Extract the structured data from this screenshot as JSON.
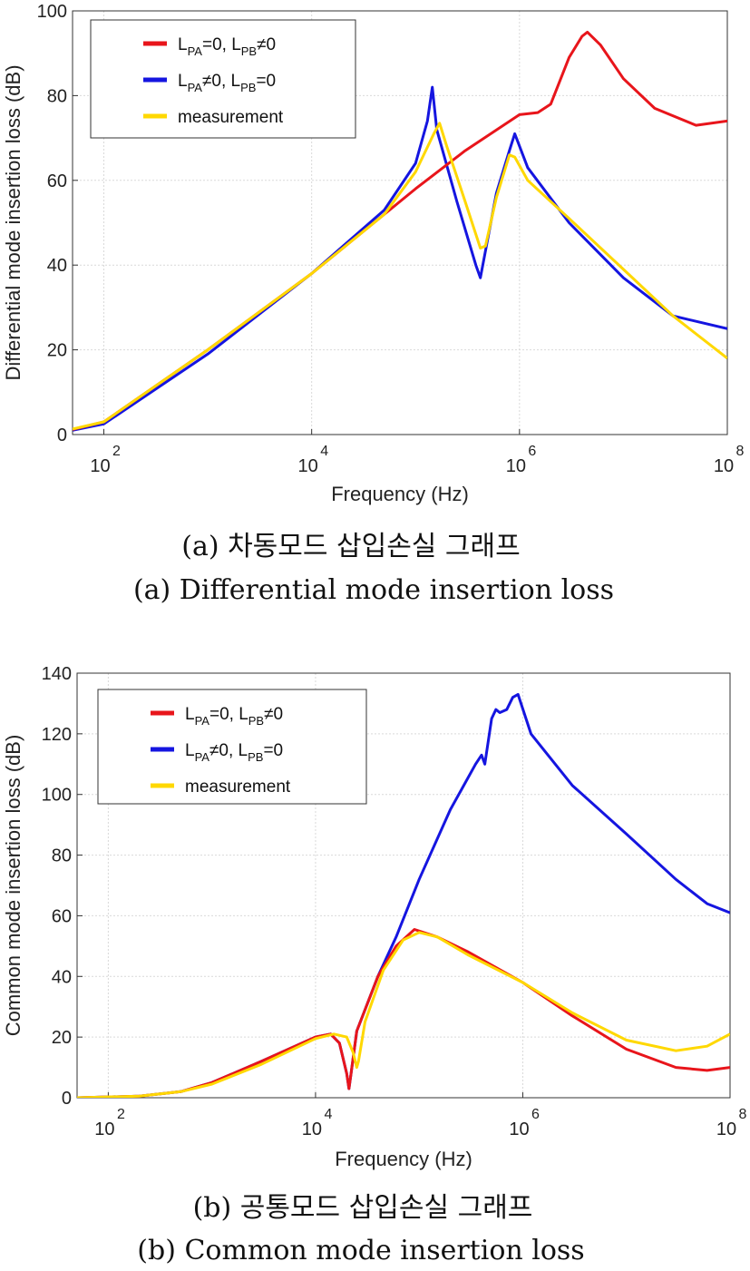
{
  "chart_data": [
    {
      "type": "line",
      "ylabel": "Differential mode insertion loss (dB)",
      "xlabel": "Frequency (Hz)",
      "xscale": "log",
      "xlim": [
        50,
        100000000
      ],
      "ylim": [
        0,
        100
      ],
      "xticks": [
        "2",
        "4",
        "6",
        "8"
      ],
      "yticks": [
        "0",
        "20",
        "40",
        "60",
        "80",
        "100"
      ],
      "grid": true,
      "legend_position": "top-left",
      "series": [
        {
          "name": "L_PA=0, L_PB≠0",
          "label_parts": {
            "a": "L",
            "a_sub": "PA",
            "b": "=0, L",
            "b_sub": "PB",
            "c": "≠0"
          },
          "color": "#e8151b",
          "x": [
            50,
            100,
            1000,
            10000,
            100000,
            300000,
            1000000,
            1500000,
            2000000,
            3000000,
            4000000,
            4500000,
            6000000,
            10000000,
            20000000,
            50000000,
            100000000
          ],
          "y": [
            1.2,
            3,
            20,
            38,
            58,
            67,
            75.5,
            76,
            78,
            89,
            94,
            95,
            92,
            84,
            77,
            73,
            74
          ]
        },
        {
          "name": "L_PA≠0, L_PB=0",
          "label_parts": {
            "a": "L",
            "a_sub": "PA",
            "b": "≠0, L",
            "b_sub": "PB",
            "c": "=0"
          },
          "color": "#1515e0",
          "x": [
            50,
            100,
            1000,
            10000,
            50000,
            100000,
            130000,
            145000,
            160000,
            250000,
            380000,
            420000,
            600000,
            800000,
            900000,
            1200000,
            3000000,
            10000000,
            30000000,
            100000000
          ],
          "y": [
            1,
            2.5,
            19,
            38,
            53,
            64,
            74,
            82,
            72,
            55,
            40,
            37,
            57,
            67,
            71,
            63,
            50,
            37,
            28,
            25
          ]
        },
        {
          "name": "measurement",
          "label_parts": {
            "a": "measurement",
            "a_sub": "",
            "b": "",
            "b_sub": "",
            "c": ""
          },
          "color": "#ffd800",
          "x": [
            50,
            100,
            1000,
            10000,
            50000,
            100000,
            150000,
            170000,
            200000,
            300000,
            420000,
            470000,
            600000,
            800000,
            900000,
            1200000,
            3000000,
            10000000,
            30000000,
            100000000
          ],
          "y": [
            1.3,
            3,
            20,
            38,
            52,
            62,
            71,
            73.5,
            68,
            55,
            44,
            44.5,
            56,
            66,
            65.5,
            60,
            51,
            39,
            28,
            18
          ]
        }
      ],
      "caption_ko": "(a) 차동모드 삽입손실 그래프",
      "caption_en": "(a) Differential mode insertion loss"
    },
    {
      "type": "line",
      "ylabel": "Common mode insertion loss (dB)",
      "xlabel": "Frequency (Hz)",
      "xscale": "log",
      "xlim": [
        50,
        100000000
      ],
      "ylim": [
        0,
        140
      ],
      "xticks": [
        "2",
        "4",
        "6",
        "8"
      ],
      "yticks": [
        "0",
        "20",
        "40",
        "60",
        "80",
        "100",
        "120",
        "140"
      ],
      "grid": true,
      "legend_position": "top-left",
      "series": [
        {
          "name": "L_PA=0, L_PB≠0",
          "label_parts": {
            "a": "L",
            "a_sub": "PA",
            "b": "=0, L",
            "b_sub": "PB",
            "c": "≠0"
          },
          "color": "#e8151b",
          "x": [
            50,
            200,
            500,
            1000,
            3000,
            10000,
            14000,
            17000,
            20000,
            21000,
            22000,
            25000,
            40000,
            60000,
            90000,
            150000,
            300000,
            1000000,
            3000000,
            10000000,
            30000000,
            60000000,
            100000000
          ],
          "y": [
            0,
            0.5,
            2,
            5,
            12,
            20,
            21,
            18,
            8,
            3,
            8,
            22,
            40,
            50,
            55.5,
            53,
            48,
            38,
            27,
            16,
            10,
            9,
            10
          ]
        },
        {
          "name": "L_PA≠0, L_PB=0",
          "label_parts": {
            "a": "L",
            "a_sub": "PA",
            "b": "≠0, L",
            "b_sub": "PB",
            "c": "=0"
          },
          "color": "#1515e0",
          "x": [
            50,
            200,
            500,
            1000,
            3000,
            10000,
            14000,
            17000,
            20000,
            21000,
            22000,
            25000,
            40000,
            60000,
            100000,
            200000,
            350000,
            400000,
            430000,
            500000,
            550000,
            600000,
            700000,
            800000,
            900000,
            1200000,
            3000000,
            10000000,
            30000000,
            60000000,
            100000000
          ],
          "y": [
            0,
            0.5,
            2,
            5,
            12,
            20,
            21,
            18,
            8,
            3,
            8,
            22,
            40,
            53,
            72,
            95,
            110,
            113,
            110,
            125,
            128,
            127,
            128,
            132,
            133,
            120,
            103,
            87,
            72,
            64,
            61
          ]
        },
        {
          "name": "measurement",
          "label_parts": {
            "a": "measurement",
            "a_sub": "",
            "b": "",
            "b_sub": "",
            "c": ""
          },
          "color": "#ffd800",
          "x": [
            50,
            200,
            500,
            1000,
            3000,
            10000,
            15000,
            20000,
            23000,
            25000,
            26000,
            30000,
            45000,
            70000,
            100000,
            150000,
            300000,
            1000000,
            3000000,
            10000000,
            30000000,
            60000000,
            100000000
          ],
          "y": [
            0,
            0.5,
            2,
            4.5,
            11,
            19.5,
            21,
            20,
            15,
            10,
            12,
            25,
            42,
            52,
            54.5,
            53,
            47,
            38,
            28,
            19,
            15.5,
            17,
            21
          ]
        }
      ],
      "caption_ko": "(b) 공통모드 삽입손실 그래프",
      "caption_en": "(b) Common mode insertion loss"
    }
  ]
}
